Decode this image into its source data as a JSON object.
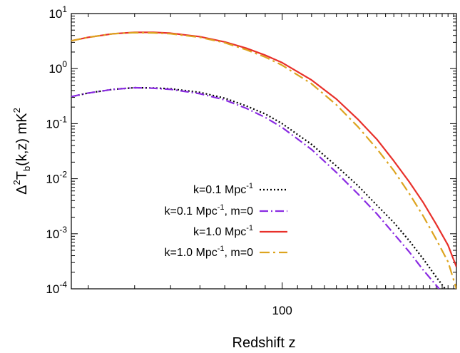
{
  "chart_data": {
    "type": "line",
    "xscale": "log",
    "yscale": "log",
    "xlim": [
      27,
      295
    ],
    "ylim": [
      0.0001,
      10
    ],
    "xlabel": "Redshift z",
    "ylabel": {
      "delta": "Δ",
      "exp": "2",
      "T": "T",
      "sub": "b",
      "rest": "(k,z)  mK",
      "unit_exp": "2"
    },
    "x_ticks": [
      {
        "value": 100,
        "label": "100"
      }
    ],
    "y_ticks": [
      {
        "value": 0.0001,
        "base": "10",
        "exp": "-4"
      },
      {
        "value": 0.001,
        "base": "10",
        "exp": "-3"
      },
      {
        "value": 0.01,
        "base": "10",
        "exp": "-2"
      },
      {
        "value": 0.1,
        "base": "10",
        "exp": "-1"
      },
      {
        "value": 1,
        "base": "10",
        "exp": "0"
      },
      {
        "value": 10,
        "base": "10",
        "exp": "1"
      }
    ],
    "grid": false,
    "legend_position": "bottom-right",
    "series": [
      {
        "legend_main": "k=0.1 Mpc",
        "legend_exp": "-1",
        "legend_tail": "",
        "color": "#000000",
        "dash": "2,3",
        "points": [
          [
            27,
            0.31
          ],
          [
            30,
            0.36
          ],
          [
            35,
            0.42
          ],
          [
            40,
            0.45
          ],
          [
            45,
            0.445
          ],
          [
            50,
            0.43
          ],
          [
            60,
            0.37
          ],
          [
            70,
            0.29
          ],
          [
            80,
            0.21
          ],
          [
            90,
            0.15
          ],
          [
            100,
            0.1
          ],
          [
            120,
            0.042
          ],
          [
            140,
            0.017
          ],
          [
            160,
            0.0075
          ],
          [
            180,
            0.0033
          ],
          [
            200,
            0.0016
          ],
          [
            220,
            0.00075
          ],
          [
            240,
            0.00035
          ],
          [
            260,
            0.000165
          ],
          [
            275,
            0.0001
          ]
        ]
      },
      {
        "legend_main": "k=0.1 Mpc",
        "legend_exp": "-1",
        "legend_tail": ", m=0",
        "color": "#8a2be2",
        "dash": "12,4,2,4",
        "points": [
          [
            27,
            0.31
          ],
          [
            30,
            0.36
          ],
          [
            35,
            0.42
          ],
          [
            40,
            0.45
          ],
          [
            45,
            0.44
          ],
          [
            50,
            0.42
          ],
          [
            60,
            0.35
          ],
          [
            70,
            0.27
          ],
          [
            80,
            0.19
          ],
          [
            90,
            0.13
          ],
          [
            100,
            0.085
          ],
          [
            120,
            0.034
          ],
          [
            140,
            0.013
          ],
          [
            160,
            0.0053
          ],
          [
            180,
            0.0023
          ],
          [
            200,
            0.001
          ],
          [
            220,
            0.00047
          ],
          [
            240,
            0.00022
          ],
          [
            265,
            0.0001
          ]
        ]
      },
      {
        "legend_main": "k=1.0 Mpc",
        "legend_exp": "-1",
        "legend_tail": "",
        "color": "#e8302a",
        "dash": "",
        "points": [
          [
            27,
            3.2
          ],
          [
            30,
            3.7
          ],
          [
            35,
            4.3
          ],
          [
            40,
            4.55
          ],
          [
            45,
            4.55
          ],
          [
            50,
            4.4
          ],
          [
            60,
            3.8
          ],
          [
            70,
            3.05
          ],
          [
            80,
            2.35
          ],
          [
            90,
            1.75
          ],
          [
            100,
            1.28
          ],
          [
            120,
            0.62
          ],
          [
            140,
            0.28
          ],
          [
            160,
            0.12
          ],
          [
            180,
            0.052
          ],
          [
            200,
            0.021
          ],
          [
            220,
            0.0088
          ],
          [
            240,
            0.0037
          ],
          [
            260,
            0.0015
          ],
          [
            280,
            0.00062
          ],
          [
            295,
            0.00025
          ]
        ]
      },
      {
        "legend_main": "k=1.0 Mpc",
        "legend_exp": "-1",
        "legend_tail": ", m=0",
        "color": "#dda41f",
        "dash": "14,5,3,5",
        "points": [
          [
            27,
            3.2
          ],
          [
            30,
            3.7
          ],
          [
            35,
            4.3
          ],
          [
            40,
            4.5
          ],
          [
            45,
            4.45
          ],
          [
            50,
            4.3
          ],
          [
            60,
            3.7
          ],
          [
            70,
            2.95
          ],
          [
            80,
            2.2
          ],
          [
            90,
            1.62
          ],
          [
            100,
            1.15
          ],
          [
            120,
            0.53
          ],
          [
            140,
            0.22
          ],
          [
            160,
            0.088
          ],
          [
            180,
            0.035
          ],
          [
            200,
            0.014
          ],
          [
            220,
            0.0054
          ],
          [
            240,
            0.0021
          ],
          [
            260,
            0.0008
          ],
          [
            280,
            0.00031
          ],
          [
            295,
            0.0001
          ]
        ]
      }
    ]
  }
}
